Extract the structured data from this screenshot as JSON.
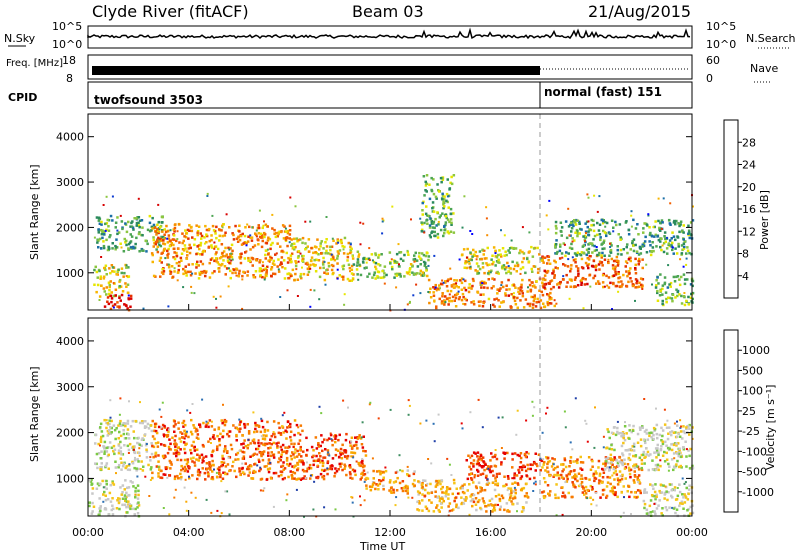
{
  "header": {
    "station": "Clyde River (fitACF)",
    "beam": "Beam 03",
    "date": "21/Aug/2015"
  },
  "top_panel": {
    "left_label": "N.Sky",
    "left_ticks": [
      "10^5",
      "10^0"
    ],
    "right_label": "N.Search",
    "right_ticks": [
      "10^5",
      "10^0"
    ]
  },
  "freq_panel": {
    "left_label": "Freq. [MHz]",
    "left_ticks": [
      "18",
      "8"
    ],
    "right_label": "Nave",
    "right_ticks": [
      "60",
      "0"
    ]
  },
  "cpid": {
    "label": "CPID",
    "segments": [
      "twofsound 3503",
      "normal (fast) 151"
    ]
  },
  "colors": {
    "palette_power": [
      "#0000ff",
      "#0c3bd0",
      "#1a6ea6",
      "#2a8a5c",
      "#4ca553",
      "#8cc63f",
      "#e6e600",
      "#f7b500",
      "#f78e00",
      "#f25f00",
      "#e63200",
      "#d70000"
    ],
    "palette_velocity": [
      "#e60000",
      "#f24000",
      "#f77a00",
      "#f9a800",
      "#f5c518",
      "#c8c8c8",
      "#c8c8c8",
      "#7ac943",
      "#3e8e60",
      "#2b6fb3",
      "#1f3fa8"
    ]
  },
  "chart_data": [
    {
      "type": "heatmap",
      "name": "power",
      "ylabel": "Slant Range [km]",
      "xlabel": "",
      "xlim": [
        "00:00",
        "00:00"
      ],
      "ylim": [
        180,
        4500
      ],
      "yticks": [
        "1000",
        "2000",
        "3000",
        "4000"
      ],
      "colorbar_label": "Power [dB]",
      "colorbar_ticks": [
        "4",
        "8",
        "12",
        "16",
        "20",
        "24",
        "28"
      ],
      "blobs": [
        {
          "t0": 0.2,
          "t1": 1.6,
          "r0": 500,
          "r1": 1200,
          "v": 0.55
        },
        {
          "t0": 0.6,
          "t1": 1.7,
          "r0": 200,
          "r1": 560,
          "v": 0.95
        },
        {
          "t0": 0.3,
          "t1": 3.0,
          "r0": 1500,
          "r1": 2300,
          "v": 0.35
        },
        {
          "t0": 2.5,
          "t1": 8.0,
          "r0": 900,
          "r1": 2100,
          "v": 0.7
        },
        {
          "t0": 8.0,
          "t1": 10.5,
          "r0": 850,
          "r1": 1800,
          "v": 0.6
        },
        {
          "t0": 10.5,
          "t1": 13.5,
          "r0": 900,
          "r1": 1500,
          "v": 0.45
        },
        {
          "t0": 13.5,
          "t1": 18.5,
          "r0": 250,
          "r1": 900,
          "v": 0.75
        },
        {
          "t0": 14.8,
          "t1": 18.0,
          "r0": 1000,
          "r1": 1600,
          "v": 0.55
        },
        {
          "t0": 18.0,
          "t1": 22.0,
          "r0": 700,
          "r1": 1400,
          "v": 0.8
        },
        {
          "t0": 18.5,
          "t1": 24.0,
          "r0": 1400,
          "r1": 2200,
          "v": 0.35
        },
        {
          "t0": 22.5,
          "t1": 24.0,
          "r0": 300,
          "r1": 1000,
          "v": 0.4
        },
        {
          "t0": 13.2,
          "t1": 14.5,
          "r0": 1800,
          "r1": 3200,
          "v": 0.4
        }
      ]
    },
    {
      "type": "heatmap",
      "name": "velocity",
      "ylabel": "Slant Range [km]",
      "xlabel": "Time UT",
      "xticks": [
        "00:00",
        "04:00",
        "08:00",
        "12:00",
        "16:00",
        "20:00",
        "00:00"
      ],
      "ylim": [
        180,
        4500
      ],
      "yticks": [
        "1000",
        "2000",
        "3000",
        "4000"
      ],
      "colorbar_label": "Velocity [m s⁻¹]",
      "colorbar_ticks": [
        "1000",
        "500",
        "100",
        "25",
        "-25",
        "-100",
        "-500",
        "-1000"
      ],
      "blobs": [
        {
          "t0": 0.0,
          "t1": 2.0,
          "r0": 200,
          "r1": 1000,
          "v": 0.55
        },
        {
          "t0": 0.2,
          "t1": 2.5,
          "r0": 1200,
          "r1": 2300,
          "v": 0.55
        },
        {
          "t0": 2.5,
          "t1": 8.5,
          "r0": 1000,
          "r1": 2300,
          "v": 0.2
        },
        {
          "t0": 8.5,
          "t1": 11.0,
          "r0": 1000,
          "r1": 2000,
          "v": 0.15
        },
        {
          "t0": 11.0,
          "t1": 13.0,
          "r0": 700,
          "r1": 1200,
          "v": 0.3
        },
        {
          "t0": 13.0,
          "t1": 17.5,
          "r0": 300,
          "r1": 1000,
          "v": 0.35
        },
        {
          "t0": 15.0,
          "t1": 18.0,
          "r0": 1000,
          "r1": 1600,
          "v": 0.1
        },
        {
          "t0": 18.0,
          "t1": 22.0,
          "r0": 600,
          "r1": 1500,
          "v": 0.25
        },
        {
          "t0": 20.5,
          "t1": 24.0,
          "r0": 1200,
          "r1": 2200,
          "v": 0.55
        },
        {
          "t0": 22.0,
          "t1": 24.0,
          "r0": 200,
          "r1": 900,
          "v": 0.55
        }
      ]
    }
  ]
}
